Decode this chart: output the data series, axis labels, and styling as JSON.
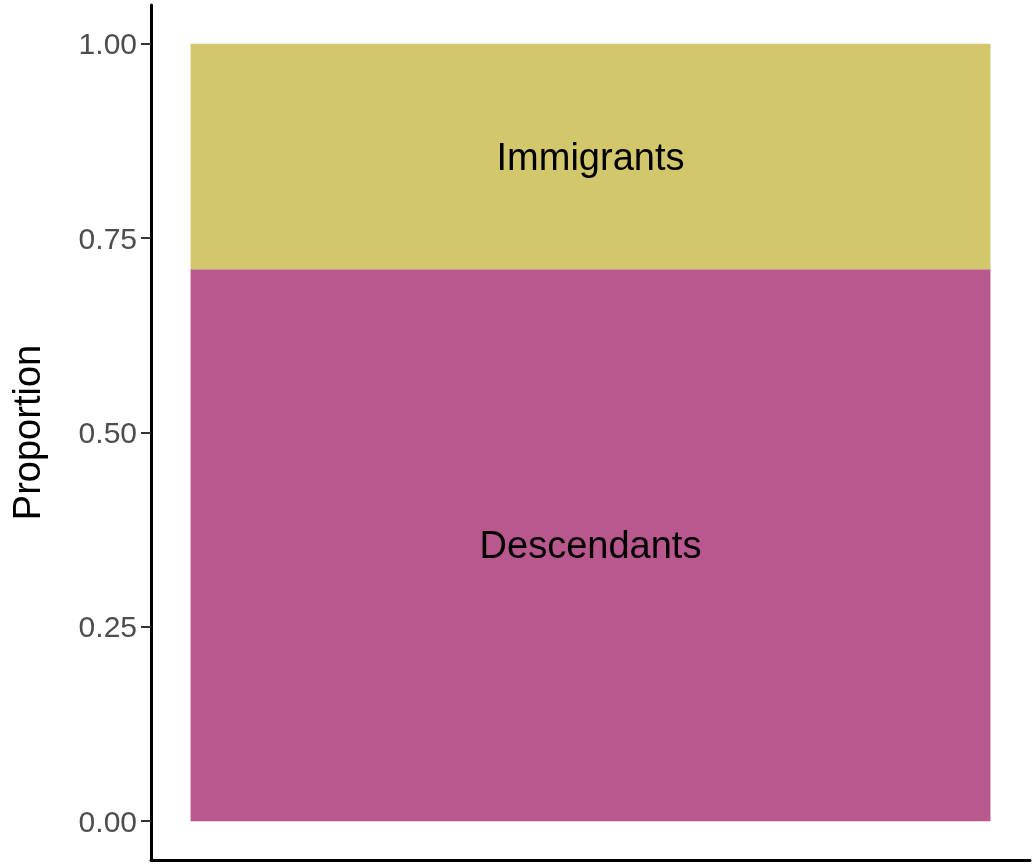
{
  "chart_data": {
    "type": "bar",
    "stacked": true,
    "ylabel": "Proportion",
    "categories": [
      null
    ],
    "series": [
      {
        "name": "Descendants",
        "color": "#b9588e",
        "values": [
          0.71
        ]
      },
      {
        "name": "Immigrants",
        "color": "#d2c76b",
        "values": [
          0.29
        ]
      }
    ],
    "ylim": [
      -0.05,
      1.05
    ],
    "yticks": [
      {
        "value": 0,
        "label": "0.00"
      },
      {
        "value": 0.25,
        "label": "0.25"
      },
      {
        "value": 0.5,
        "label": "0.50"
      },
      {
        "value": 0.75,
        "label": "0.75"
      },
      {
        "value": 1,
        "label": "1.00"
      }
    ],
    "grid": false,
    "legend": false
  }
}
